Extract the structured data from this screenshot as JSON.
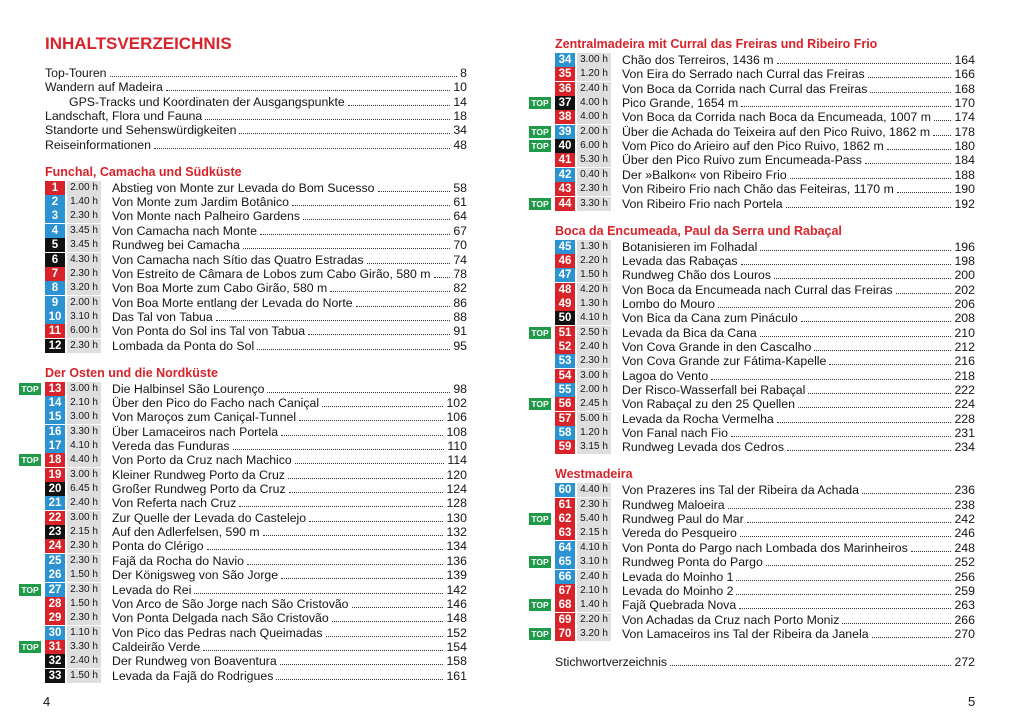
{
  "colors": {
    "r": "#d8232a",
    "b": "#2b93d1",
    "k": "#111111",
    "top": "#1e9a48"
  },
  "pages": [
    {
      "title": "INHALTSVERZEICHNIS",
      "toc": [
        {
          "text": "Top-Touren",
          "page": "8"
        },
        {
          "text": "Wandern auf Madeira",
          "page": "10"
        },
        {
          "text": "GPS-Tracks und Koordinaten der Ausgangspunkte",
          "page": "14",
          "indent": true
        },
        {
          "text": "Landschaft, Flora und Fauna",
          "page": "18"
        },
        {
          "text": "Standorte und Sehenswürdigkeiten",
          "page": "34"
        },
        {
          "text": "Reiseinformationen",
          "page": "48"
        }
      ],
      "sections": [
        {
          "heading": "Funchal, Camacha und Südküste",
          "entries": [
            {
              "num": "1",
              "c": "r",
              "time": "2.00 h",
              "title": "Abstieg von Monte zur Levada do Bom Sucesso",
              "page": "58"
            },
            {
              "num": "2",
              "c": "b",
              "time": "1.40 h",
              "title": "Von Monte zum Jardim Botânico",
              "page": "61"
            },
            {
              "num": "3",
              "c": "b",
              "time": "2.30 h",
              "title": "Von Monte nach Palheiro Gardens",
              "page": "64"
            },
            {
              "num": "4",
              "c": "b",
              "time": "3.45 h",
              "title": "Von Camacha nach Monte",
              "page": "67"
            },
            {
              "num": "5",
              "c": "k",
              "time": "3.45 h",
              "title": "Rundweg bei Camacha",
              "page": "70"
            },
            {
              "num": "6",
              "c": "k",
              "time": "4.30 h",
              "title": "Von Camacha nach Sítio das Quatro Estradas",
              "page": "74"
            },
            {
              "num": "7",
              "c": "r",
              "time": "2.30 h",
              "title": "Von Estreito de Câmara de Lobos zum Cabo Girão, 580 m",
              "page": "78"
            },
            {
              "num": "8",
              "c": "b",
              "time": "3.20 h",
              "title": "Von Boa Morte zum Cabo Girão, 580 m",
              "page": "82"
            },
            {
              "num": "9",
              "c": "b",
              "time": "2.00 h",
              "title": "Von Boa Morte entlang der Levada do Norte",
              "page": "86"
            },
            {
              "num": "10",
              "c": "b",
              "time": "3.10 h",
              "title": "Das Tal von Tabua",
              "page": "88"
            },
            {
              "num": "11",
              "c": "r",
              "time": "6.00 h",
              "title": "Von Ponta do Sol ins Tal von Tabua",
              "page": "91"
            },
            {
              "num": "12",
              "c": "k",
              "time": "2.30 h",
              "title": "Lombada da Ponta do Sol",
              "page": "95"
            }
          ]
        },
        {
          "heading": "Der Osten und die Nordküste",
          "entries": [
            {
              "num": "13",
              "c": "r",
              "time": "3.00 h",
              "title": "Die Halbinsel São Lourenço",
              "page": "98",
              "top": "TOP"
            },
            {
              "num": "14",
              "c": "b",
              "time": "2.10 h",
              "title": "Über den Pico do Facho nach Caniçal",
              "page": "102"
            },
            {
              "num": "15",
              "c": "b",
              "time": "3.00 h",
              "title": "Von Maroços zum Caniçal-Tunnel",
              "page": "106"
            },
            {
              "num": "16",
              "c": "b",
              "time": "3.30 h",
              "title": "Über Lamaceiros nach Portela",
              "page": "108"
            },
            {
              "num": "17",
              "c": "b",
              "time": "4.10 h",
              "title": "Vereda das Funduras",
              "page": "110"
            },
            {
              "num": "18",
              "c": "r",
              "time": "4.40 h",
              "title": "Von Porto da Cruz nach Machico",
              "page": "114",
              "top": "TOP"
            },
            {
              "num": "19",
              "c": "r",
              "time": "3.00 h",
              "title": "Kleiner Rundweg Porto da Cruz",
              "page": "120"
            },
            {
              "num": "20",
              "c": "k",
              "time": "6.45 h",
              "title": "Großer Rundweg Porto da Cruz",
              "page": "124"
            },
            {
              "num": "21",
              "c": "b",
              "time": "2.40 h",
              "title": "Von Referta nach Cruz",
              "page": "128"
            },
            {
              "num": "22",
              "c": "r",
              "time": "3.00 h",
              "title": "Zur Quelle der Levada do Castelejo",
              "page": "130"
            },
            {
              "num": "23",
              "c": "k",
              "time": "2.15 h",
              "title": "Auf den Adlerfelsen, 590 m",
              "page": "132"
            },
            {
              "num": "24",
              "c": "r",
              "time": "2.30 h",
              "title": "Ponta do Clérigo",
              "page": "134"
            },
            {
              "num": "25",
              "c": "b",
              "time": "2.30 h",
              "title": "Fajã da Rocha do Navio",
              "page": "136"
            },
            {
              "num": "26",
              "c": "b",
              "time": "1.50 h",
              "title": "Der Königsweg von São Jorge",
              "page": "139"
            },
            {
              "num": "27",
              "c": "b",
              "time": "2.30 h",
              "title": "Levada do Rei",
              "page": "142",
              "top": "TOP"
            },
            {
              "num": "28",
              "c": "r",
              "time": "1.50 h",
              "title": "Von Arco de São Jorge nach São Cristovão",
              "page": "146"
            },
            {
              "num": "29",
              "c": "r",
              "time": "2.30 h",
              "title": "Von Ponta Delgada nach São Cristovão",
              "page": "148"
            },
            {
              "num": "30",
              "c": "b",
              "time": "1.10 h",
              "title": "Von Pico das Pedras nach Queimadas",
              "page": "152"
            },
            {
              "num": "31",
              "c": "r",
              "time": "3.30 h",
              "title": "Caldeirão Verde",
              "page": "154",
              "top": "TOP"
            },
            {
              "num": "32",
              "c": "k",
              "time": "2.40 h",
              "title": "Der Rundweg von Boaventura",
              "page": "158"
            },
            {
              "num": "33",
              "c": "k",
              "time": "1.50 h",
              "title": "Levada da Fajã do Rodrigues",
              "page": "161"
            }
          ]
        }
      ],
      "folio": "4"
    },
    {
      "sections": [
        {
          "heading": "Zentralmadeira mit Curral das Freiras und Ribeiro Frio",
          "entries": [
            {
              "num": "34",
              "c": "b",
              "time": "3.00 h",
              "title": "Chão dos Terreiros, 1436 m",
              "page": "164"
            },
            {
              "num": "35",
              "c": "r",
              "time": "1.20 h",
              "title": "Von Eira do Serrado nach Curral das Freiras",
              "page": "166"
            },
            {
              "num": "36",
              "c": "r",
              "time": "2.40 h",
              "title": "Von Boca da Corrida nach Curral das Freiras",
              "page": "168"
            },
            {
              "num": "37",
              "c": "k",
              "time": "4.00 h",
              "title": "Pico Grande, 1654 m",
              "page": "170",
              "top": "TOP"
            },
            {
              "num": "38",
              "c": "r",
              "time": "4.00 h",
              "title": "Von Boca da Corrida nach Boca da Encumeada, 1007 m",
              "page": "174"
            },
            {
              "num": "39",
              "c": "b",
              "time": "2.00 h",
              "title": "Über die Achada do Teixeira auf den Pico Ruivo, 1862 m",
              "page": "178",
              "top": "TOP"
            },
            {
              "num": "40",
              "c": "k",
              "time": "6.00 h",
              "title": "Vom Pico do Arieiro auf den Pico Ruivo, 1862 m",
              "page": "180",
              "top": "TOP"
            },
            {
              "num": "41",
              "c": "r",
              "time": "5.30 h",
              "title": "Über den Pico Ruivo zum Encumeada-Pass",
              "page": "184"
            },
            {
              "num": "42",
              "c": "b",
              "time": "0.40 h",
              "title": "Der »Balkon« von Ribeiro Frio",
              "page": "188"
            },
            {
              "num": "43",
              "c": "r",
              "time": "2.30 h",
              "title": "Von Ribeiro Frio nach Chão das Feiteiras, 1170 m",
              "page": "190"
            },
            {
              "num": "44",
              "c": "r",
              "time": "3.30 h",
              "title": "Von Ribeiro Frio nach Portela",
              "page": "192",
              "top": "TOP"
            }
          ]
        },
        {
          "heading": "Boca da Encumeada, Paul da Serra und Rabaçal",
          "entries": [
            {
              "num": "45",
              "c": "b",
              "time": "1.30 h",
              "title": "Botanisieren im Folhadal",
              "page": "196"
            },
            {
              "num": "46",
              "c": "r",
              "time": "2.20 h",
              "title": "Levada das Rabaças",
              "page": "198"
            },
            {
              "num": "47",
              "c": "b",
              "time": "1.50 h",
              "title": "Rundweg Chão dos Louros",
              "page": "200"
            },
            {
              "num": "48",
              "c": "r",
              "time": "4.20 h",
              "title": "Von Boca da Encumeada nach Curral das Freiras",
              "page": "202"
            },
            {
              "num": "49",
              "c": "r",
              "time": "1.30 h",
              "title": "Lombo do Mouro",
              "page": "206"
            },
            {
              "num": "50",
              "c": "k",
              "time": "4.10 h",
              "title": "Von Bica da Cana zum Pináculo",
              "page": "208"
            },
            {
              "num": "51",
              "c": "r",
              "time": "2.50 h",
              "title": "Levada da Bica da Cana",
              "page": "210",
              "top": "TOP"
            },
            {
              "num": "52",
              "c": "r",
              "time": "2.40 h",
              "title": "Von Cova Grande in den Cascalho",
              "page": "212"
            },
            {
              "num": "53",
              "c": "b",
              "time": "2.30 h",
              "title": "Von Cova Grande zur Fátima-Kapelle",
              "page": "216"
            },
            {
              "num": "54",
              "c": "r",
              "time": "3.00 h",
              "title": "Lagoa do Vento",
              "page": "218"
            },
            {
              "num": "55",
              "c": "b",
              "time": "2.00 h",
              "title": "Der Risco-Wasserfall bei Rabaçal",
              "page": "222"
            },
            {
              "num": "56",
              "c": "r",
              "time": "2.45 h",
              "title": "Von Rabaçal zu den 25 Quellen",
              "page": "224",
              "top": "TOP"
            },
            {
              "num": "57",
              "c": "r",
              "time": "5.00 h",
              "title": "Levada da Rocha Vermelha",
              "page": "228"
            },
            {
              "num": "58",
              "c": "b",
              "time": "1.20 h",
              "title": "Von Fanal nach Fio",
              "page": "231"
            },
            {
              "num": "59",
              "c": "r",
              "time": "3.15 h",
              "title": "Rundweg Levada dos Cedros",
              "page": "234"
            }
          ]
        },
        {
          "heading": "Westmadeira",
          "entries": [
            {
              "num": "60",
              "c": "b",
              "time": "4.40 h",
              "title": "Von Prazeres ins Tal der Ribeira da Achada",
              "page": "236"
            },
            {
              "num": "61",
              "c": "r",
              "time": "2.30 h",
              "title": "Rundweg Maloeira",
              "page": "238"
            },
            {
              "num": "62",
              "c": "r",
              "time": "5.40 h",
              "title": "Rundweg Paul do Mar",
              "page": "242",
              "top": "TOP"
            },
            {
              "num": "63",
              "c": "r",
              "time": "2.15 h",
              "title": "Vereda do Pesqueiro",
              "page": "246"
            },
            {
              "num": "64",
              "c": "b",
              "time": "4.10 h",
              "title": "Von Ponta do Pargo nach Lombada dos Marinheiros",
              "page": "248"
            },
            {
              "num": "65",
              "c": "b",
              "time": "3.10 h",
              "title": "Rundweg Ponta do Pargo",
              "page": "252",
              "top": "TOP"
            },
            {
              "num": "66",
              "c": "b",
              "time": "2.40 h",
              "title": "Levada do Moinho 1",
              "page": "256"
            },
            {
              "num": "67",
              "c": "r",
              "time": "2.10 h",
              "title": "Levada do Moinho 2",
              "page": "259"
            },
            {
              "num": "68",
              "c": "r",
              "time": "1.40 h",
              "title": "Fajã Quebrada Nova",
              "page": "263",
              "top": "TOP"
            },
            {
              "num": "69",
              "c": "r",
              "time": "2.20 h",
              "title": "Von Achadas da Cruz nach Porto Moniz",
              "page": "266"
            },
            {
              "num": "70",
              "c": "r",
              "time": "3.20 h",
              "title": "Von Lamaceiros ins Tal der Ribeira da Janela",
              "page": "270",
              "top": "TOP"
            }
          ]
        }
      ],
      "index": {
        "text": "Stichwortverzeichnis",
        "page": "272"
      },
      "folio": "5"
    }
  ]
}
